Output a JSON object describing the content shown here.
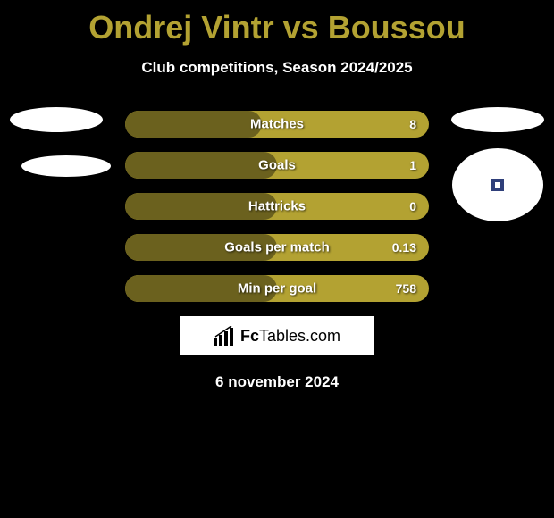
{
  "title": "Ondrej Vintr vs Boussou",
  "subtitle": "Club competitions, Season 2024/2025",
  "date": "6 november 2024",
  "logo": {
    "bold": "Fc",
    "rest": "Tables.com"
  },
  "colors": {
    "background": "#000000",
    "accent": "#b3a232",
    "bar_dark": "#6b611e",
    "text": "#ffffff",
    "dot": "#2f3f7a"
  },
  "bars": [
    {
      "label": "Matches",
      "value_right": "8",
      "fill_pct": 45
    },
    {
      "label": "Goals",
      "value_right": "1",
      "fill_pct": 50
    },
    {
      "label": "Hattricks",
      "value_right": "0",
      "fill_pct": 50
    },
    {
      "label": "Goals per match",
      "value_right": "0.13",
      "fill_pct": 50
    },
    {
      "label": "Min per goal",
      "value_right": "758",
      "fill_pct": 50
    }
  ]
}
